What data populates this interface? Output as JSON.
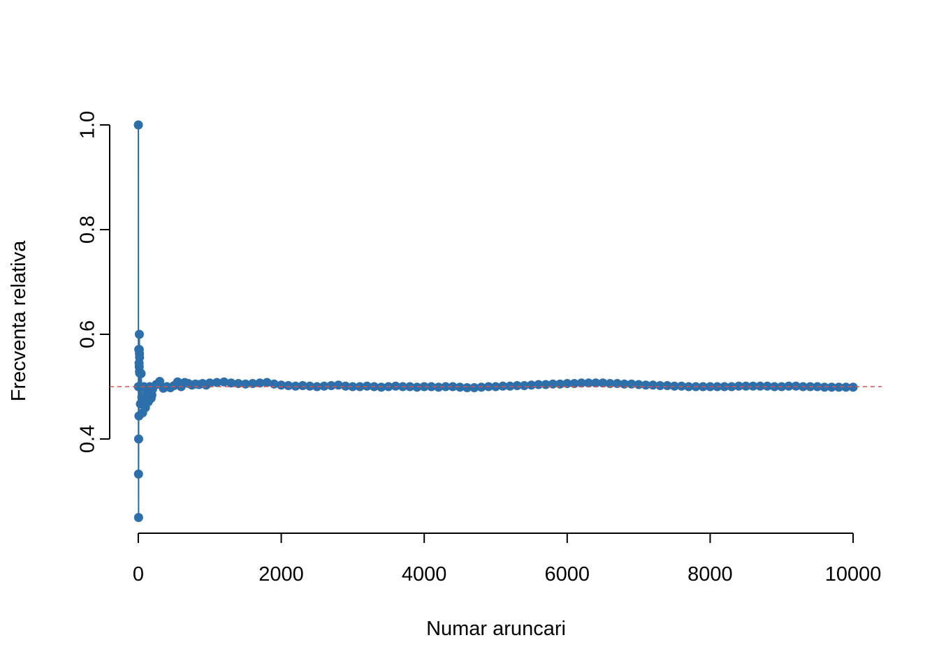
{
  "chart_data": {
    "type": "line",
    "xlabel": "Numar aruncari",
    "ylabel": "Frecventa relativa",
    "color": "#2c6fab",
    "markers": true,
    "hline": 0.5,
    "hline_color": "#d9534f",
    "hline_dashed": true,
    "xlim": [
      -400,
      10400
    ],
    "ylim": [
      0.22,
      1.03
    ],
    "xticks": [
      0,
      2000,
      4000,
      6000,
      8000,
      10000
    ],
    "yticks": [
      0.4,
      0.6,
      0.8,
      {
        "value": 1,
        "label": "1.0"
      }
    ],
    "x": [
      1,
      2,
      3,
      4,
      5,
      6,
      7,
      8,
      9,
      10,
      11,
      12,
      13,
      14,
      15,
      16,
      17,
      18,
      19,
      20,
      30,
      40,
      50,
      60,
      70,
      80,
      90,
      100,
      110,
      120,
      130,
      140,
      150,
      160,
      170,
      180,
      190,
      200,
      250,
      300,
      350,
      400,
      450,
      500,
      550,
      600,
      650,
      700,
      750,
      800,
      850,
      900,
      950,
      1000,
      1100,
      1200,
      1300,
      1400,
      1500,
      1600,
      1700,
      1800,
      1900,
      2000,
      2100,
      2200,
      2300,
      2400,
      2500,
      2600,
      2700,
      2800,
      2900,
      3000,
      3100,
      3200,
      3300,
      3400,
      3500,
      3600,
      3700,
      3800,
      3900,
      4000,
      4100,
      4200,
      4300,
      4400,
      4500,
      4600,
      4700,
      4800,
      4900,
      5000,
      5100,
      5200,
      5300,
      5400,
      5500,
      5600,
      5700,
      5800,
      5900,
      6000,
      6100,
      6200,
      6300,
      6400,
      6500,
      6600,
      6700,
      6800,
      6900,
      7000,
      7100,
      7200,
      7300,
      7400,
      7500,
      7600,
      7700,
      7800,
      7900,
      8000,
      8100,
      8200,
      8300,
      8400,
      8500,
      8600,
      8700,
      8800,
      8900,
      9000,
      9100,
      9200,
      9300,
      9400,
      9500,
      9600,
      9700,
      9800,
      9900,
      10000
    ],
    "values": [
      1,
      0.5,
      0.333,
      0.25,
      0.4,
      0.5,
      0.571,
      0.5,
      0.444,
      0.5,
      0.545,
      0.5,
      0.538,
      0.571,
      0.6,
      0.563,
      0.529,
      0.556,
      0.526,
      0.5,
      0.467,
      0.525,
      0.48,
      0.45,
      0.471,
      0.5,
      0.478,
      0.46,
      0.473,
      0.492,
      0.485,
      0.471,
      0.487,
      0.5,
      0.488,
      0.478,
      0.484,
      0.495,
      0.504,
      0.51,
      0.497,
      0.5,
      0.498,
      0.502,
      0.509,
      0.5,
      0.508,
      0.506,
      0.503,
      0.505,
      0.504,
      0.506,
      0.503,
      0.507,
      0.508,
      0.509,
      0.507,
      0.506,
      0.505,
      0.506,
      0.507,
      0.508,
      0.505,
      0.503,
      0.502,
      0.501,
      0.502,
      0.501,
      0.5,
      0.501,
      0.502,
      0.503,
      0.501,
      0.5,
      0.5,
      0.501,
      0.5,
      0.499,
      0.5,
      0.501,
      0.5,
      0.5,
      0.499,
      0.5,
      0.5,
      0.499,
      0.5,
      0.5,
      0.499,
      0.498,
      0.498,
      0.499,
      0.5,
      0.5,
      0.501,
      0.501,
      0.502,
      0.502,
      0.503,
      0.504,
      0.504,
      0.505,
      0.505,
      0.506,
      0.506,
      0.507,
      0.507,
      0.507,
      0.507,
      0.506,
      0.506,
      0.505,
      0.505,
      0.504,
      0.503,
      0.503,
      0.502,
      0.502,
      0.501,
      0.501,
      0.5,
      0.5,
      0.5,
      0.5,
      0.5,
      0.5,
      0.5,
      0.501,
      0.501,
      0.501,
      0.501,
      0.501,
      0.5,
      0.5,
      0.501,
      0.501,
      0.5,
      0.5,
      0.5,
      0.499,
      0.499,
      0.499,
      0.499,
      0.499
    ]
  }
}
